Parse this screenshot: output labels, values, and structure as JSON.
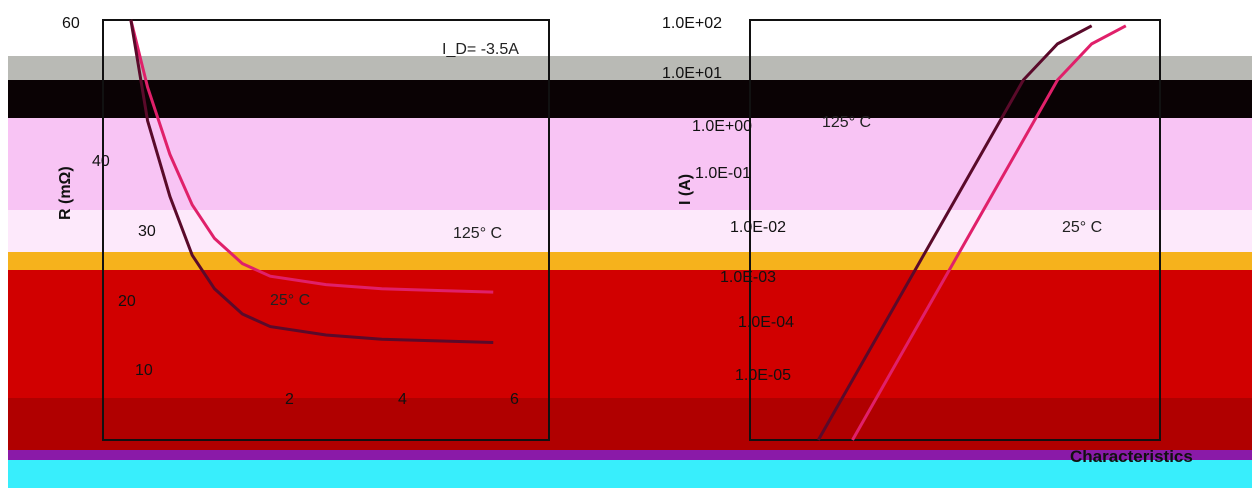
{
  "chart_data": [
    {
      "type": "line",
      "title": "",
      "xlabel": "",
      "ylabel": "R (mΩ)",
      "yticks": [
        "60",
        "",
        "40",
        "30",
        "20",
        "10"
      ],
      "xticks": [
        "",
        "2",
        "4",
        "6",
        ""
      ],
      "ylim": [
        10,
        60
      ],
      "xlim": [
        0,
        8
      ],
      "annotations": [
        "I_D= -3.5A",
        "125° C",
        "25° C"
      ],
      "series": [
        {
          "name": "125° C",
          "x": [
            0.5,
            0.8,
            1.2,
            1.6,
            2.0,
            2.5,
            3.0,
            4.0,
            5.0,
            6.0,
            7.0
          ],
          "y": [
            60,
            52,
            44,
            38,
            34,
            31,
            29.5,
            28.5,
            28,
            27.8,
            27.6
          ]
        },
        {
          "name": "25° C",
          "x": [
            0.5,
            0.8,
            1.2,
            1.6,
            2.0,
            2.5,
            3.0,
            4.0,
            5.0,
            6.0,
            7.0
          ],
          "y": [
            60,
            48,
            39,
            32,
            28,
            25,
            23.5,
            22.5,
            22,
            21.8,
            21.6
          ]
        }
      ]
    },
    {
      "type": "line",
      "title": "",
      "xlabel": "",
      "ylabel": "I (A)",
      "yticks": [
        "1.0E+02",
        "1.0E+01",
        "1.0E+00",
        "1.0E-01",
        "1.0E-02",
        "1.0E-03",
        "1.0E-04",
        "1.0E-05"
      ],
      "log_scale_y": true,
      "annotations": [
        "125° C",
        "25° C"
      ],
      "series": [
        {
          "name": "125° C",
          "x": [
            0.2,
            0.3,
            0.4,
            0.5,
            0.6,
            0.7,
            0.8,
            0.9,
            1.0
          ],
          "y": [
            1e-05,
            0.0001,
            0.001,
            0.01,
            0.1,
            1,
            10,
            40,
            80
          ]
        },
        {
          "name": "25° C",
          "x": [
            0.3,
            0.4,
            0.5,
            0.6,
            0.7,
            0.8,
            0.9,
            1.0,
            1.1
          ],
          "y": [
            1e-05,
            0.0001,
            0.001,
            0.01,
            0.1,
            1,
            10,
            40,
            80
          ]
        }
      ]
    }
  ],
  "caption": "Characteristics",
  "colors": {
    "band_gray": "#b9bab5",
    "band_black": "#0a0204",
    "band_maroon": "#3a0010",
    "band_pink": "#f8c4f4",
    "band_pink_light": "#fde9fb",
    "band_orange": "#f6b21c",
    "band_red": "#d10000",
    "band_darkred": "#b00000",
    "band_purple": "#8a1aa8",
    "band_cyan": "#38eefc",
    "curve_dark": "#5a0a2a",
    "curve_hot": "#e0206a"
  }
}
